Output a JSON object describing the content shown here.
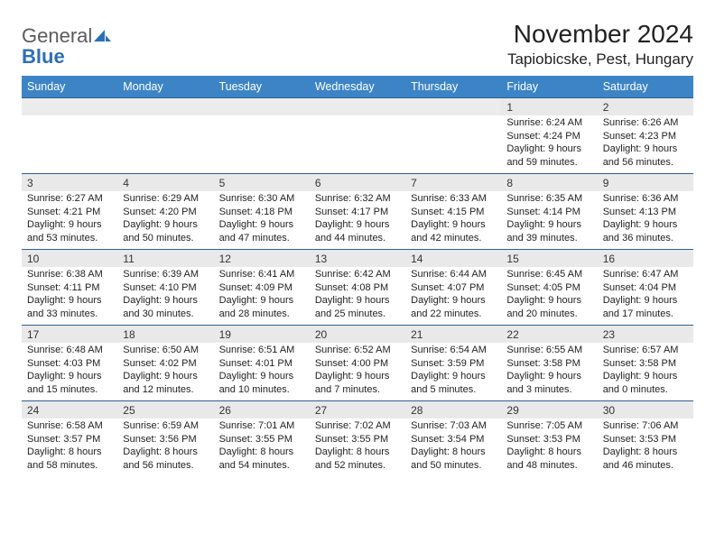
{
  "logo": {
    "text1": "General",
    "text2": "Blue"
  },
  "title": {
    "month": "November 2024",
    "location": "Tapiobicske, Pest, Hungary"
  },
  "dow": [
    "Sunday",
    "Monday",
    "Tuesday",
    "Wednesday",
    "Thursday",
    "Friday",
    "Saturday"
  ],
  "colors": {
    "header_bg": "#3d84c6",
    "header_text": "#ffffff",
    "daynum_bg": "#e9e9e9",
    "row_border": "#2b5f91",
    "logo_gray": "#5b5b5b",
    "logo_blue": "#2d6fb5"
  },
  "weeks": [
    [
      null,
      null,
      null,
      null,
      null,
      {
        "n": "1",
        "sr": "Sunrise: 6:24 AM",
        "ss": "Sunset: 4:24 PM",
        "d1": "Daylight: 9 hours",
        "d2": "and 59 minutes."
      },
      {
        "n": "2",
        "sr": "Sunrise: 6:26 AM",
        "ss": "Sunset: 4:23 PM",
        "d1": "Daylight: 9 hours",
        "d2": "and 56 minutes."
      }
    ],
    [
      {
        "n": "3",
        "sr": "Sunrise: 6:27 AM",
        "ss": "Sunset: 4:21 PM",
        "d1": "Daylight: 9 hours",
        "d2": "and 53 minutes."
      },
      {
        "n": "4",
        "sr": "Sunrise: 6:29 AM",
        "ss": "Sunset: 4:20 PM",
        "d1": "Daylight: 9 hours",
        "d2": "and 50 minutes."
      },
      {
        "n": "5",
        "sr": "Sunrise: 6:30 AM",
        "ss": "Sunset: 4:18 PM",
        "d1": "Daylight: 9 hours",
        "d2": "and 47 minutes."
      },
      {
        "n": "6",
        "sr": "Sunrise: 6:32 AM",
        "ss": "Sunset: 4:17 PM",
        "d1": "Daylight: 9 hours",
        "d2": "and 44 minutes."
      },
      {
        "n": "7",
        "sr": "Sunrise: 6:33 AM",
        "ss": "Sunset: 4:15 PM",
        "d1": "Daylight: 9 hours",
        "d2": "and 42 minutes."
      },
      {
        "n": "8",
        "sr": "Sunrise: 6:35 AM",
        "ss": "Sunset: 4:14 PM",
        "d1": "Daylight: 9 hours",
        "d2": "and 39 minutes."
      },
      {
        "n": "9",
        "sr": "Sunrise: 6:36 AM",
        "ss": "Sunset: 4:13 PM",
        "d1": "Daylight: 9 hours",
        "d2": "and 36 minutes."
      }
    ],
    [
      {
        "n": "10",
        "sr": "Sunrise: 6:38 AM",
        "ss": "Sunset: 4:11 PM",
        "d1": "Daylight: 9 hours",
        "d2": "and 33 minutes."
      },
      {
        "n": "11",
        "sr": "Sunrise: 6:39 AM",
        "ss": "Sunset: 4:10 PM",
        "d1": "Daylight: 9 hours",
        "d2": "and 30 minutes."
      },
      {
        "n": "12",
        "sr": "Sunrise: 6:41 AM",
        "ss": "Sunset: 4:09 PM",
        "d1": "Daylight: 9 hours",
        "d2": "and 28 minutes."
      },
      {
        "n": "13",
        "sr": "Sunrise: 6:42 AM",
        "ss": "Sunset: 4:08 PM",
        "d1": "Daylight: 9 hours",
        "d2": "and 25 minutes."
      },
      {
        "n": "14",
        "sr": "Sunrise: 6:44 AM",
        "ss": "Sunset: 4:07 PM",
        "d1": "Daylight: 9 hours",
        "d2": "and 22 minutes."
      },
      {
        "n": "15",
        "sr": "Sunrise: 6:45 AM",
        "ss": "Sunset: 4:05 PM",
        "d1": "Daylight: 9 hours",
        "d2": "and 20 minutes."
      },
      {
        "n": "16",
        "sr": "Sunrise: 6:47 AM",
        "ss": "Sunset: 4:04 PM",
        "d1": "Daylight: 9 hours",
        "d2": "and 17 minutes."
      }
    ],
    [
      {
        "n": "17",
        "sr": "Sunrise: 6:48 AM",
        "ss": "Sunset: 4:03 PM",
        "d1": "Daylight: 9 hours",
        "d2": "and 15 minutes."
      },
      {
        "n": "18",
        "sr": "Sunrise: 6:50 AM",
        "ss": "Sunset: 4:02 PM",
        "d1": "Daylight: 9 hours",
        "d2": "and 12 minutes."
      },
      {
        "n": "19",
        "sr": "Sunrise: 6:51 AM",
        "ss": "Sunset: 4:01 PM",
        "d1": "Daylight: 9 hours",
        "d2": "and 10 minutes."
      },
      {
        "n": "20",
        "sr": "Sunrise: 6:52 AM",
        "ss": "Sunset: 4:00 PM",
        "d1": "Daylight: 9 hours",
        "d2": "and 7 minutes."
      },
      {
        "n": "21",
        "sr": "Sunrise: 6:54 AM",
        "ss": "Sunset: 3:59 PM",
        "d1": "Daylight: 9 hours",
        "d2": "and 5 minutes."
      },
      {
        "n": "22",
        "sr": "Sunrise: 6:55 AM",
        "ss": "Sunset: 3:58 PM",
        "d1": "Daylight: 9 hours",
        "d2": "and 3 minutes."
      },
      {
        "n": "23",
        "sr": "Sunrise: 6:57 AM",
        "ss": "Sunset: 3:58 PM",
        "d1": "Daylight: 9 hours",
        "d2": "and 0 minutes."
      }
    ],
    [
      {
        "n": "24",
        "sr": "Sunrise: 6:58 AM",
        "ss": "Sunset: 3:57 PM",
        "d1": "Daylight: 8 hours",
        "d2": "and 58 minutes."
      },
      {
        "n": "25",
        "sr": "Sunrise: 6:59 AM",
        "ss": "Sunset: 3:56 PM",
        "d1": "Daylight: 8 hours",
        "d2": "and 56 minutes."
      },
      {
        "n": "26",
        "sr": "Sunrise: 7:01 AM",
        "ss": "Sunset: 3:55 PM",
        "d1": "Daylight: 8 hours",
        "d2": "and 54 minutes."
      },
      {
        "n": "27",
        "sr": "Sunrise: 7:02 AM",
        "ss": "Sunset: 3:55 PM",
        "d1": "Daylight: 8 hours",
        "d2": "and 52 minutes."
      },
      {
        "n": "28",
        "sr": "Sunrise: 7:03 AM",
        "ss": "Sunset: 3:54 PM",
        "d1": "Daylight: 8 hours",
        "d2": "and 50 minutes."
      },
      {
        "n": "29",
        "sr": "Sunrise: 7:05 AM",
        "ss": "Sunset: 3:53 PM",
        "d1": "Daylight: 8 hours",
        "d2": "and 48 minutes."
      },
      {
        "n": "30",
        "sr": "Sunrise: 7:06 AM",
        "ss": "Sunset: 3:53 PM",
        "d1": "Daylight: 8 hours",
        "d2": "and 46 minutes."
      }
    ]
  ]
}
